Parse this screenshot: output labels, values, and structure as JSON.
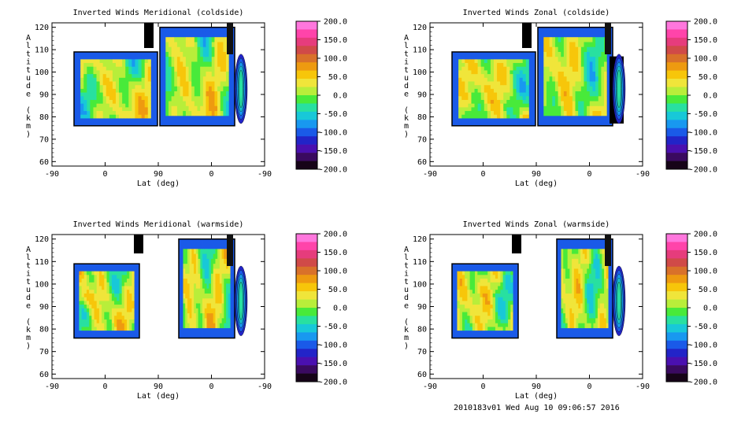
{
  "footer": "2010183v01 Wed Aug 10 09:06:57 2016",
  "colorbar": {
    "ticks": [
      "200.0",
      "150.0",
      "100.0",
      "50.0",
      "0.0",
      "-50.0",
      "-100.0",
      "-150.0",
      "-200.0"
    ],
    "colors": [
      "#ff77dd",
      "#ff44aa",
      "#e63c7c",
      "#d04a48",
      "#d9712a",
      "#ee9a10",
      "#f7c60a",
      "#f0e53a",
      "#b8ee3a",
      "#48ea3a",
      "#28e0a0",
      "#18c8d8",
      "#1898f0",
      "#1a5ae8",
      "#2224c8",
      "#4a10b0",
      "#3a0a60",
      "#160418"
    ]
  },
  "chart_data": [
    {
      "type": "heatmap",
      "title": "Inverted Winds Meridional (coldside)",
      "xlabel": "Lat (deg)",
      "ylabel": "Altitude (km)",
      "xticks": [
        "-90",
        "0",
        "90",
        "0",
        "-90"
      ],
      "yticks": [
        "60",
        "70",
        "80",
        "90",
        "100",
        "110",
        "120"
      ],
      "ylim": [
        58,
        122
      ],
      "clim": [
        -200,
        200
      ]
    },
    {
      "type": "heatmap",
      "title": "Inverted Winds Zonal (coldside)",
      "xlabel": "Lat (deg)",
      "ylabel": "Altitude (km)",
      "xticks": [
        "-90",
        "0",
        "90",
        "0",
        "-90"
      ],
      "yticks": [
        "60",
        "70",
        "80",
        "90",
        "100",
        "110",
        "120"
      ],
      "ylim": [
        58,
        122
      ],
      "clim": [
        -200,
        200
      ]
    },
    {
      "type": "heatmap",
      "title": "Inverted Winds Meridional (warmside)",
      "xlabel": "Lat (deg)",
      "ylabel": "Altitude (km)",
      "xticks": [
        "-90",
        "0",
        "90",
        "0",
        "-90"
      ],
      "yticks": [
        "60",
        "70",
        "80",
        "90",
        "100",
        "110",
        "120"
      ],
      "ylim": [
        58,
        122
      ],
      "clim": [
        -200,
        200
      ]
    },
    {
      "type": "heatmap",
      "title": "Inverted Winds Zonal (warmside)",
      "xlabel": "Lat (deg)",
      "ylabel": "Altitude (km)",
      "xticks": [
        "-90",
        "0",
        "90",
        "0",
        "-90"
      ],
      "yticks": [
        "60",
        "70",
        "80",
        "90",
        "100",
        "110",
        "120"
      ],
      "ylim": [
        58,
        122
      ],
      "clim": [
        -200,
        200
      ]
    }
  ]
}
